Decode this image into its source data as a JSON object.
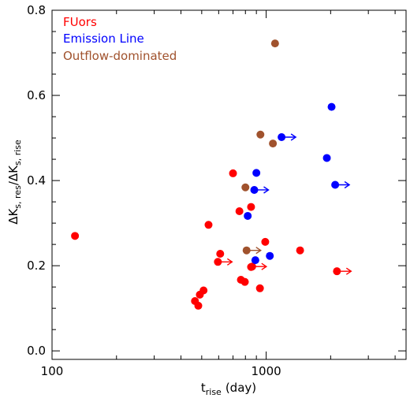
{
  "chart_data": {
    "type": "scatter",
    "xscale": "log",
    "xlim": [
      100,
      4500
    ],
    "ylim": [
      -0.02,
      0.8
    ],
    "xticks": [
      100,
      1000
    ],
    "xtick_labels": [
      "100",
      "1000"
    ],
    "yticks": [
      0.0,
      0.2,
      0.4,
      0.6,
      0.8
    ],
    "ytick_labels": [
      "0.0",
      "0.2",
      "0.4",
      "0.6",
      "0.8"
    ],
    "xlabel_main": "t",
    "xlabel_sub": "rise",
    "xlabel_unit": "(day)",
    "ylabel_parts": {
      "delta1": "ΔK",
      "sub1": "s, res",
      "slash": "/",
      "delta2": "ΔK",
      "sub2": "s, rise"
    },
    "grid": false,
    "legend_position": "top-left",
    "series": [
      {
        "name": "FUors",
        "color": "#ff0000",
        "points": [
          {
            "x": 128,
            "y": 0.27
          },
          {
            "x": 465,
            "y": 0.117
          },
          {
            "x": 482,
            "y": 0.106
          },
          {
            "x": 490,
            "y": 0.132
          },
          {
            "x": 510,
            "y": 0.142
          },
          {
            "x": 538,
            "y": 0.296
          },
          {
            "x": 610,
            "y": 0.228
          },
          {
            "x": 700,
            "y": 0.417
          },
          {
            "x": 750,
            "y": 0.328
          },
          {
            "x": 762,
            "y": 0.167
          },
          {
            "x": 795,
            "y": 0.162
          },
          {
            "x": 850,
            "y": 0.338
          },
          {
            "x": 850,
            "y": 0.197
          },
          {
            "x": 935,
            "y": 0.147
          },
          {
            "x": 990,
            "y": 0.256
          },
          {
            "x": 1440,
            "y": 0.236
          },
          {
            "x": 595,
            "y": 0.209,
            "lower_limit": true
          },
          {
            "x": 860,
            "y": 0.198,
            "lower_limit": true
          },
          {
            "x": 2140,
            "y": 0.187,
            "lower_limit": true
          }
        ]
      },
      {
        "name": "Emission Line",
        "color": "#0000ff",
        "points": [
          {
            "x": 820,
            "y": 0.317
          },
          {
            "x": 890,
            "y": 0.213
          },
          {
            "x": 900,
            "y": 0.418
          },
          {
            "x": 1040,
            "y": 0.223
          },
          {
            "x": 1920,
            "y": 0.453
          },
          {
            "x": 2020,
            "y": 0.573
          },
          {
            "x": 1180,
            "y": 0.502,
            "lower_limit": true
          },
          {
            "x": 880,
            "y": 0.378,
            "lower_limit": true
          },
          {
            "x": 2100,
            "y": 0.39,
            "lower_limit": true
          }
        ]
      },
      {
        "name": "Outflow-dominated",
        "color": "#a0522d",
        "points": [
          {
            "x": 940,
            "y": 0.508
          },
          {
            "x": 800,
            "y": 0.384
          },
          {
            "x": 1075,
            "y": 0.487
          },
          {
            "x": 1100,
            "y": 0.722
          },
          {
            "x": 810,
            "y": 0.236,
            "lower_limit": true
          }
        ]
      }
    ]
  }
}
